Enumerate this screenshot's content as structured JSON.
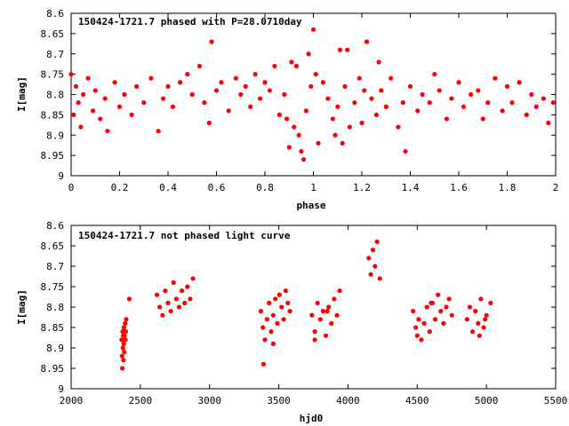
{
  "chart_data": [
    {
      "type": "scatter",
      "title": "150424-1721.7 phased with P=28.0710day",
      "xlabel": "phase",
      "ylabel": "I[mag]",
      "xlim": [
        0,
        2
      ],
      "ylim": [
        8.6,
        9.0
      ],
      "y_inverted": true,
      "xticks": [
        0,
        0.2,
        0.4,
        0.6,
        0.8,
        1,
        1.2,
        1.4,
        1.6,
        1.8,
        2
      ],
      "xtick_labels": [
        "0",
        "0.2",
        "0.4",
        "0.6",
        "0.8",
        "1",
        "1.2",
        "1.4",
        "1.6",
        "1.8",
        "2"
      ],
      "yticks": [
        8.6,
        8.65,
        8.7,
        8.75,
        8.8,
        8.85,
        8.9,
        8.95,
        9.0
      ],
      "ytick_labels": [
        "8.6",
        "8.65",
        "8.7",
        "8.75",
        "8.8",
        "8.85",
        "8.9",
        "8.95",
        "9"
      ],
      "marker_color": "#ff0000",
      "series": [
        {
          "x": [
            0.0,
            0.01,
            0.02,
            0.03,
            0.04,
            0.05,
            0.07,
            0.09,
            0.1,
            0.12,
            0.14,
            0.15,
            0.18,
            0.2,
            0.22,
            0.25,
            0.27,
            0.3,
            0.33,
            0.36,
            0.38,
            0.4,
            0.42,
            0.45,
            0.48,
            0.5,
            0.53,
            0.55,
            0.57,
            0.58,
            0.6,
            0.62,
            0.65,
            0.68,
            0.7,
            0.72,
            0.74,
            0.76,
            0.78,
            0.8,
            0.82,
            0.84,
            0.86,
            0.88,
            0.89,
            0.9,
            0.91,
            0.92,
            0.93,
            0.94,
            0.95,
            0.96,
            0.97,
            0.98,
            0.99,
            1.0,
            1.01,
            1.02,
            1.04,
            1.06,
            1.08,
            1.09,
            1.1,
            1.11,
            1.12,
            1.13,
            1.14,
            1.15,
            1.17,
            1.19,
            1.2,
            1.21,
            1.22,
            1.24,
            1.26,
            1.27,
            1.28,
            1.3,
            1.32,
            1.35,
            1.37,
            1.38,
            1.4,
            1.43,
            1.45,
            1.48,
            1.5,
            1.52,
            1.55,
            1.57,
            1.6,
            1.62,
            1.65,
            1.68,
            1.7,
            1.72,
            1.75,
            1.78,
            1.8,
            1.82,
            1.85,
            1.88,
            1.9,
            1.92,
            1.95,
            1.97,
            1.99
          ],
          "y": [
            8.75,
            8.85,
            8.78,
            8.82,
            8.88,
            8.8,
            8.76,
            8.84,
            8.79,
            8.86,
            8.81,
            8.89,
            8.77,
            8.83,
            8.8,
            8.85,
            8.78,
            8.82,
            8.76,
            8.89,
            8.81,
            8.78,
            8.83,
            8.77,
            8.75,
            8.8,
            8.73,
            8.82,
            8.87,
            8.67,
            8.79,
            8.77,
            8.84,
            8.76,
            8.8,
            8.78,
            8.83,
            8.75,
            8.81,
            8.77,
            8.79,
            8.73,
            8.85,
            8.8,
            8.86,
            8.93,
            8.72,
            8.88,
            8.73,
            8.9,
            8.94,
            8.96,
            8.84,
            8.7,
            8.78,
            8.64,
            8.75,
            8.92,
            8.77,
            8.81,
            8.86,
            8.9,
            8.83,
            8.69,
            8.92,
            8.78,
            8.69,
            8.88,
            8.82,
            8.76,
            8.87,
            8.79,
            8.67,
            8.81,
            8.85,
            8.72,
            8.79,
            8.83,
            8.76,
            8.88,
            8.82,
            8.94,
            8.78,
            8.84,
            8.8,
            8.82,
            8.75,
            8.79,
            8.86,
            8.81,
            8.77,
            8.83,
            8.8,
            8.79,
            8.86,
            8.82,
            8.76,
            8.84,
            8.78,
            8.82,
            8.77,
            8.85,
            8.8,
            8.83,
            8.81,
            8.87,
            8.82
          ]
        }
      ]
    },
    {
      "type": "scatter",
      "title": "150424-1721.7 not phased light curve",
      "xlabel": "hjd0",
      "ylabel": "I[mag]",
      "xlim": [
        2000,
        5500
      ],
      "ylim": [
        8.6,
        9.0
      ],
      "y_inverted": true,
      "xticks": [
        2000,
        2500,
        3000,
        3500,
        4000,
        4500,
        5000,
        5500
      ],
      "xtick_labels": [
        "2000",
        "2500",
        "3000",
        "3500",
        "4000",
        "4500",
        "5000",
        "5500"
      ],
      "yticks": [
        8.6,
        8.65,
        8.7,
        8.75,
        8.8,
        8.85,
        8.9,
        8.95,
        9.0
      ],
      "ytick_labels": [
        "8.6",
        "8.65",
        "8.7",
        "8.75",
        "8.8",
        "8.85",
        "8.9",
        "8.95",
        "9"
      ],
      "marker_color": "#ff0000",
      "series": [
        {
          "x": [
            2365,
            2368,
            2370,
            2372,
            2374,
            2376,
            2378,
            2380,
            2382,
            2384,
            2386,
            2388,
            2390,
            2392,
            2395,
            2398,
            2420,
            2620,
            2640,
            2660,
            2680,
            2700,
            2720,
            2740,
            2760,
            2780,
            2800,
            2820,
            2840,
            2860,
            2880,
            3370,
            3385,
            3400,
            3415,
            3430,
            3445,
            3460,
            3475,
            3490,
            3505,
            3520,
            3535,
            3550,
            3565,
            3580,
            3390,
            3460,
            3740,
            3760,
            3780,
            3800,
            3820,
            3840,
            3860,
            3880,
            3900,
            3920,
            3940,
            3760,
            3850,
            4150,
            4165,
            4180,
            4195,
            4210,
            4230,
            4470,
            4490,
            4510,
            4530,
            4550,
            4570,
            4590,
            4610,
            4630,
            4650,
            4670,
            4690,
            4710,
            4730,
            4750,
            4500,
            4600,
            4860,
            4880,
            4900,
            4920,
            4940,
            4960,
            4980,
            5000,
            5030,
            4950,
            4990
          ],
          "y": [
            8.88,
            8.92,
            8.95,
            8.86,
            8.9,
            8.87,
            8.93,
            8.89,
            8.85,
            8.91,
            8.87,
            8.86,
            8.84,
            8.88,
            8.86,
            8.83,
            8.78,
            8.77,
            8.8,
            8.82,
            8.76,
            8.79,
            8.81,
            8.74,
            8.78,
            8.8,
            8.76,
            8.79,
            8.75,
            8.78,
            8.73,
            8.81,
            8.85,
            8.88,
            8.83,
            8.79,
            8.86,
            8.82,
            8.78,
            8.84,
            8.77,
            8.8,
            8.83,
            8.76,
            8.79,
            8.81,
            8.94,
            8.89,
            8.82,
            8.86,
            8.79,
            8.83,
            8.81,
            8.87,
            8.8,
            8.84,
            8.78,
            8.82,
            8.76,
            8.88,
            8.81,
            8.68,
            8.72,
            8.66,
            8.7,
            8.64,
            8.73,
            8.81,
            8.85,
            8.83,
            8.88,
            8.84,
            8.8,
            8.86,
            8.79,
            8.83,
            8.77,
            8.81,
            8.84,
            8.8,
            8.78,
            8.82,
            8.87,
            8.79,
            8.83,
            8.8,
            8.86,
            8.81,
            8.84,
            8.78,
            8.85,
            8.82,
            8.79,
            8.87,
            8.83
          ]
        }
      ]
    }
  ]
}
